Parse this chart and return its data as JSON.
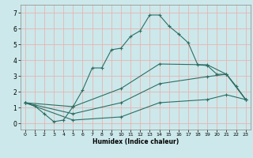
{
  "xlabel": "Humidex (Indice chaleur)",
  "background_color": "#cce8ea",
  "grid_color": "#e8b4b4",
  "line_color": "#2e6e64",
  "xlim": [
    -0.5,
    23.5
  ],
  "ylim": [
    -0.4,
    7.5
  ],
  "xticks": [
    0,
    1,
    2,
    3,
    4,
    5,
    6,
    7,
    8,
    9,
    10,
    11,
    12,
    13,
    14,
    15,
    16,
    17,
    18,
    19,
    20,
    21,
    22,
    23
  ],
  "yticks": [
    0,
    1,
    2,
    3,
    4,
    5,
    6,
    7
  ],
  "line1_x": [
    0,
    1,
    2,
    3,
    4,
    5,
    6,
    7,
    8,
    9,
    10,
    11,
    12,
    13,
    14,
    15,
    16,
    17,
    18,
    19,
    20,
    21,
    22,
    23
  ],
  "line1_y": [
    1.3,
    1.1,
    0.6,
    0.1,
    0.2,
    1.05,
    2.1,
    3.5,
    3.5,
    4.65,
    4.75,
    5.5,
    5.85,
    6.85,
    6.85,
    6.15,
    5.65,
    5.1,
    3.7,
    3.65,
    3.1,
    3.1,
    2.35,
    1.5
  ],
  "line2_x": [
    0,
    5,
    10,
    14,
    19,
    21,
    23
  ],
  "line2_y": [
    1.3,
    1.05,
    2.2,
    3.75,
    3.7,
    3.1,
    1.5
  ],
  "line3_x": [
    0,
    5,
    10,
    14,
    19,
    21,
    23
  ],
  "line3_y": [
    1.3,
    0.6,
    1.3,
    2.5,
    2.95,
    3.1,
    1.5
  ],
  "line4_x": [
    0,
    5,
    10,
    14,
    19,
    21,
    23
  ],
  "line4_y": [
    1.3,
    0.2,
    0.4,
    1.3,
    1.5,
    1.8,
    1.5
  ]
}
